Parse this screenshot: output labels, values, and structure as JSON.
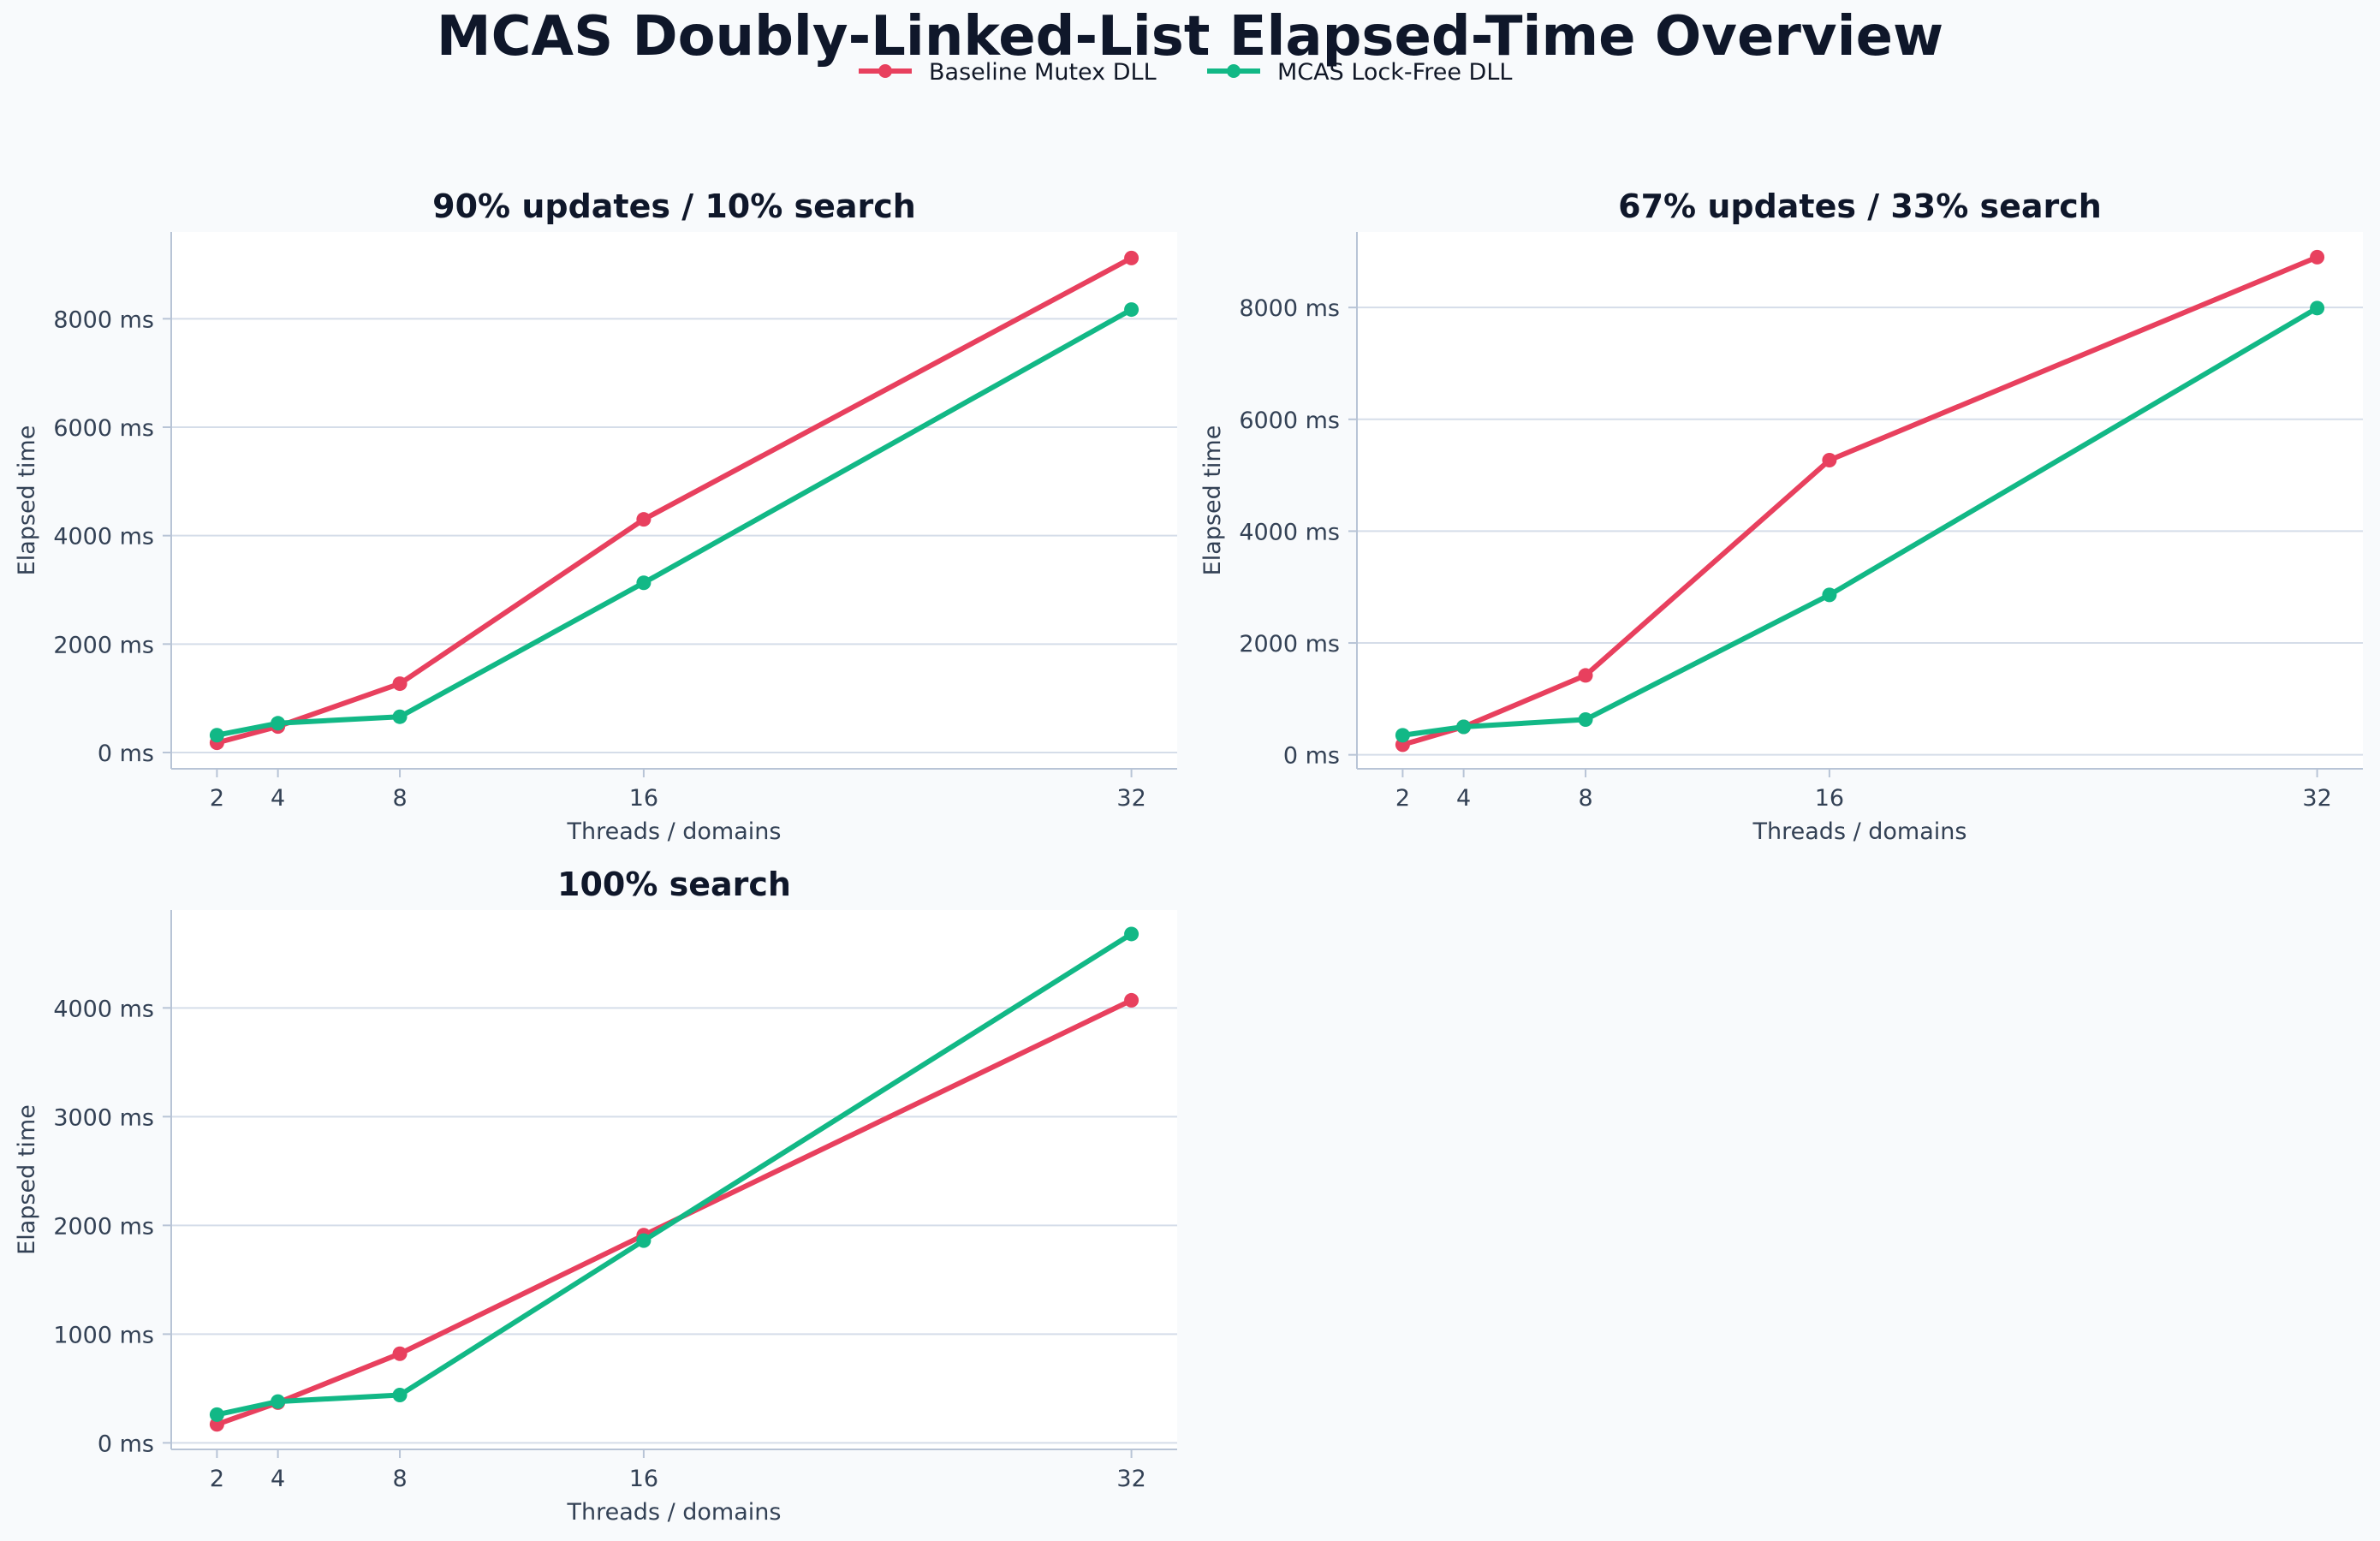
{
  "title": "MCAS Doubly-Linked-List Elapsed-Time Overview",
  "legend": {
    "placement": "top-center",
    "entries": [
      {
        "label": "Baseline Mutex DLL",
        "color": "#e8405e"
      },
      {
        "label": "MCAS Lock-Free DLL",
        "color": "#12b886"
      }
    ]
  },
  "colors": {
    "background": "#f8fafc",
    "plot_background": "#ffffff",
    "grid": "#d5dde9",
    "spine": "#b8c4d6",
    "text": "#334155",
    "title": "#0f172a"
  },
  "chart_data": [
    {
      "type": "line",
      "title": "90% updates / 10% search",
      "xlabel": "Threads / domains",
      "ylabel": "Elapsed time",
      "x": [
        2,
        4,
        8,
        16,
        32
      ],
      "xticks": [
        "2",
        "4",
        "8",
        "16",
        "32"
      ],
      "xlim": [
        0.5,
        33.5
      ],
      "ylim": [
        -300,
        9600
      ],
      "yticks": [
        0,
        2000,
        4000,
        6000,
        8000
      ],
      "ytick_labels": [
        "0 ms",
        "2000 ms",
        "4000 ms",
        "6000 ms",
        "8000 ms"
      ],
      "grid": "y",
      "series": [
        {
          "name": "Baseline Mutex DLL",
          "color": "#e8405e",
          "values": [
            180,
            480,
            1270,
            4300,
            9120
          ]
        },
        {
          "name": "MCAS Lock-Free DLL",
          "color": "#12b886",
          "values": [
            320,
            540,
            660,
            3130,
            8170
          ]
        }
      ]
    },
    {
      "type": "line",
      "title": "67% updates / 33% search",
      "xlabel": "Threads / domains",
      "ylabel": "Elapsed time",
      "x": [
        2,
        4,
        8,
        16,
        32
      ],
      "xticks": [
        "2",
        "4",
        "8",
        "16",
        "32"
      ],
      "xlim": [
        0.5,
        33.5
      ],
      "ylim": [
        -250,
        9350
      ],
      "yticks": [
        0,
        2000,
        4000,
        6000,
        8000
      ],
      "ytick_labels": [
        "0 ms",
        "2000 ms",
        "4000 ms",
        "6000 ms",
        "8000 ms"
      ],
      "grid": "y",
      "series": [
        {
          "name": "Baseline Mutex DLL",
          "color": "#e8405e",
          "values": [
            180,
            500,
            1420,
            5270,
            8900
          ]
        },
        {
          "name": "MCAS Lock-Free DLL",
          "color": "#12b886",
          "values": [
            350,
            500,
            630,
            2860,
            7990
          ]
        }
      ]
    },
    {
      "type": "line",
      "title": "100% search",
      "xlabel": "Threads / domains",
      "ylabel": "Elapsed time",
      "x": [
        2,
        4,
        8,
        16,
        32
      ],
      "xticks": [
        "2",
        "4",
        "8",
        "16",
        "32"
      ],
      "xlim": [
        0.5,
        33.5
      ],
      "ylim": [
        -60,
        4900
      ],
      "yticks": [
        0,
        1000,
        2000,
        3000,
        4000
      ],
      "ytick_labels": [
        "0 ms",
        "1000 ms",
        "2000 ms",
        "3000 ms",
        "4000 ms"
      ],
      "grid": "y",
      "series": [
        {
          "name": "Baseline Mutex DLL",
          "color": "#e8405e",
          "values": [
            170,
            370,
            820,
            1910,
            4070
          ]
        },
        {
          "name": "MCAS Lock-Free DLL",
          "color": "#12b886",
          "values": [
            260,
            380,
            440,
            1860,
            4680
          ]
        }
      ]
    }
  ]
}
